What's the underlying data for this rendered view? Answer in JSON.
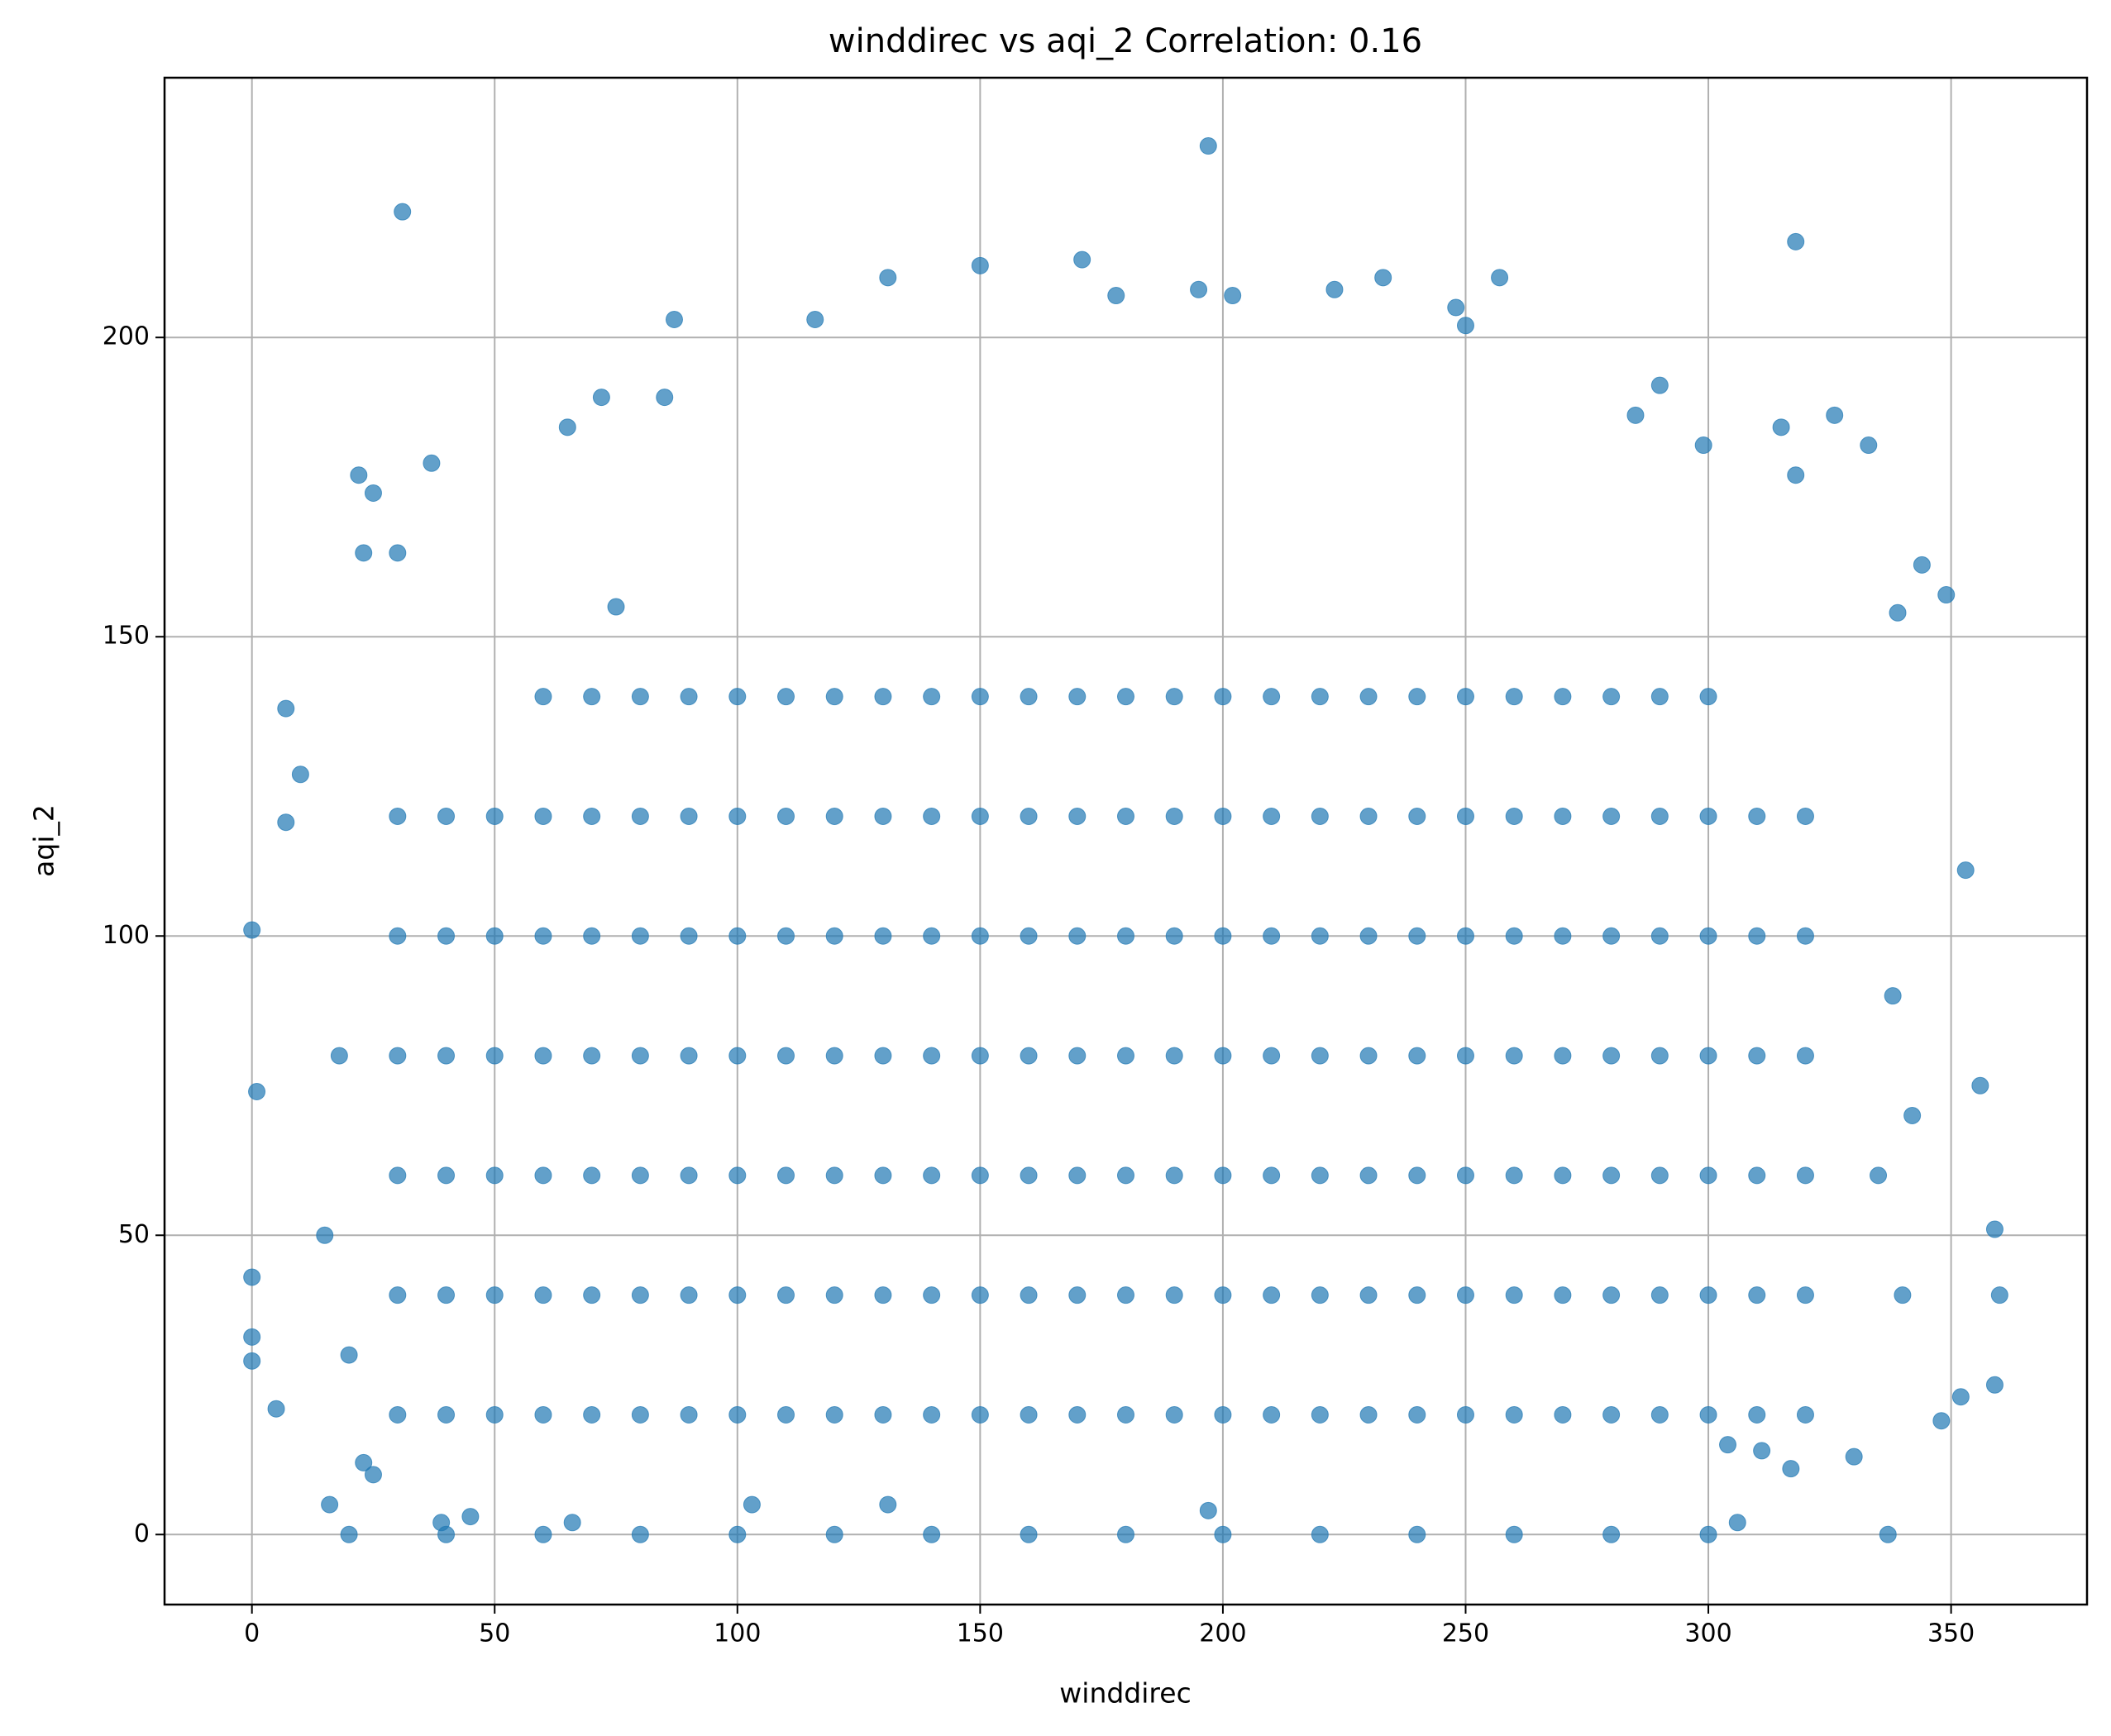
{
  "chart_data": {
    "type": "scatter",
    "title": "winddirec vs aqi_2 Correlation: 0.16",
    "x_label": "winddirec",
    "y_label": "aqi_2",
    "color": "#1f77b4",
    "grid": true,
    "xlim": [
      -18,
      378
    ],
    "ylim": [
      -11.7,
      243.4
    ],
    "xticks": [
      0,
      50,
      100,
      150,
      200,
      250,
      300,
      350
    ],
    "yticks": [
      0,
      50,
      100,
      150,
      200
    ],
    "x": [
      30,
      40,
      50,
      60,
      70,
      80,
      90,
      100,
      110,
      120,
      130,
      140,
      150,
      160,
      170,
      180,
      190,
      200,
      210,
      220,
      230,
      240,
      250,
      260,
      270,
      280,
      290,
      300,
      310,
      320,
      30,
      40,
      50,
      60,
      70,
      80,
      90,
      100,
      110,
      120,
      130,
      140,
      150,
      160,
      170,
      180,
      190,
      200,
      210,
      220,
      230,
      240,
      250,
      260,
      270,
      280,
      290,
      300,
      310,
      320,
      30,
      40,
      50,
      60,
      70,
      80,
      90,
      100,
      110,
      120,
      130,
      140,
      150,
      160,
      170,
      180,
      190,
      200,
      210,
      220,
      230,
      240,
      250,
      260,
      270,
      280,
      290,
      300,
      310,
      320,
      30,
      40,
      50,
      60,
      70,
      80,
      90,
      100,
      110,
      120,
      130,
      140,
      150,
      160,
      170,
      180,
      190,
      200,
      210,
      220,
      230,
      240,
      250,
      260,
      270,
      280,
      290,
      300,
      310,
      320,
      30,
      40,
      50,
      60,
      70,
      80,
      90,
      100,
      110,
      120,
      130,
      140,
      150,
      160,
      170,
      180,
      190,
      200,
      210,
      220,
      230,
      240,
      250,
      260,
      270,
      280,
      290,
      300,
      310,
      320,
      30,
      40,
      50,
      60,
      70,
      80,
      90,
      100,
      110,
      120,
      130,
      140,
      150,
      160,
      170,
      180,
      190,
      200,
      210,
      220,
      230,
      240,
      250,
      260,
      270,
      280,
      290,
      300,
      310,
      320,
      60,
      70,
      80,
      90,
      100,
      110,
      120,
      130,
      140,
      150,
      160,
      170,
      180,
      190,
      200,
      210,
      220,
      230,
      240,
      250,
      260,
      270,
      280,
      290,
      300,
      20,
      40,
      60,
      80,
      100,
      120,
      140,
      160,
      180,
      200,
      220,
      240,
      260,
      280,
      300,
      31,
      197,
      318,
      87,
      116,
      131,
      150,
      171,
      257,
      233,
      7,
      0,
      0,
      0,
      1,
      0,
      5,
      16,
      103,
      131,
      197,
      306,
      337,
      353,
      356,
      359,
      360,
      359,
      352,
      348,
      344,
      349,
      339,
      333,
      326,
      318,
      315,
      37,
      22,
      25,
      72,
      85,
      65,
      178,
      195,
      202,
      223,
      248,
      250,
      285,
      290,
      299,
      330,
      317,
      311,
      304,
      23,
      25,
      39,
      45,
      66,
      75,
      30,
      23,
      10,
      7,
      15,
      18,
      20,
      335,
      338,
      340,
      342
    ],
    "values": [
      20,
      20,
      20,
      20,
      20,
      20,
      20,
      20,
      20,
      20,
      20,
      20,
      20,
      20,
      20,
      20,
      20,
      20,
      20,
      20,
      20,
      20,
      20,
      20,
      20,
      20,
      20,
      20,
      20,
      20,
      40,
      40,
      40,
      40,
      40,
      40,
      40,
      40,
      40,
      40,
      40,
      40,
      40,
      40,
      40,
      40,
      40,
      40,
      40,
      40,
      40,
      40,
      40,
      40,
      40,
      40,
      40,
      40,
      40,
      40,
      60,
      60,
      60,
      60,
      60,
      60,
      60,
      60,
      60,
      60,
      60,
      60,
      60,
      60,
      60,
      60,
      60,
      60,
      60,
      60,
      60,
      60,
      60,
      60,
      60,
      60,
      60,
      60,
      60,
      60,
      80,
      80,
      80,
      80,
      80,
      80,
      80,
      80,
      80,
      80,
      80,
      80,
      80,
      80,
      80,
      80,
      80,
      80,
      80,
      80,
      80,
      80,
      80,
      80,
      80,
      80,
      80,
      80,
      80,
      80,
      100,
      100,
      100,
      100,
      100,
      100,
      100,
      100,
      100,
      100,
      100,
      100,
      100,
      100,
      100,
      100,
      100,
      100,
      100,
      100,
      100,
      100,
      100,
      100,
      100,
      100,
      100,
      100,
      100,
      100,
      120,
      120,
      120,
      120,
      120,
      120,
      120,
      120,
      120,
      120,
      120,
      120,
      120,
      120,
      120,
      120,
      120,
      120,
      120,
      120,
      120,
      120,
      120,
      120,
      120,
      120,
      120,
      120,
      120,
      120,
      140,
      140,
      140,
      140,
      140,
      140,
      140,
      140,
      140,
      140,
      140,
      140,
      140,
      140,
      140,
      140,
      140,
      140,
      140,
      140,
      140,
      140,
      140,
      140,
      140,
      0,
      0,
      0,
      0,
      0,
      0,
      0,
      0,
      0,
      0,
      0,
      0,
      0,
      0,
      0,
      221,
      232,
      216,
      203,
      203,
      210,
      212,
      213,
      210,
      210,
      138,
      101,
      43,
      33,
      74,
      29,
      21,
      5,
      5,
      5,
      4,
      2,
      0,
      111,
      75,
      51,
      40,
      25,
      23,
      19,
      162,
      157,
      154,
      182,
      187,
      177,
      185,
      179,
      177,
      174,
      190,
      190,
      185,
      207,
      208,
      207,
      208,
      205,
      202,
      187,
      192,
      182,
      13,
      11,
      14,
      15,
      12,
      10,
      2,
      3,
      2,
      155,
      164,
      164,
      127,
      119,
      50,
      80,
      30,
      60,
      90,
      40,
      70
    ]
  }
}
